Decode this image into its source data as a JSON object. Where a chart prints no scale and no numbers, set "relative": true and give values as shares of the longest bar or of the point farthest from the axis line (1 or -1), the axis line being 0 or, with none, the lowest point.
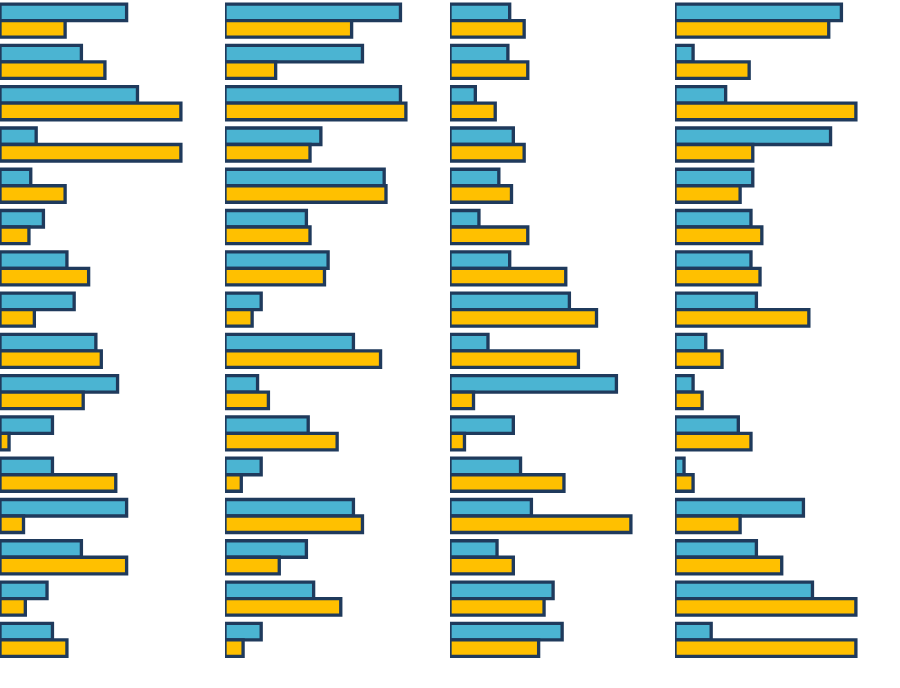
{
  "chart_data": [
    {
      "type": "bar",
      "orientation": "horizontal",
      "relative": true,
      "categories": [
        null,
        null,
        null,
        null,
        null,
        null,
        null,
        null,
        null,
        null,
        null,
        null,
        null,
        null,
        null,
        null
      ],
      "series": [
        {
          "color": "#4bb4d2",
          "values": [
            0.7,
            0.45,
            0.76,
            0.2,
            0.17,
            0.24,
            0.37,
            0.41,
            0.53,
            0.65,
            0.29,
            0.29,
            0.7,
            0.45,
            0.26,
            0.29
          ]
        },
        {
          "color": "#ffc000",
          "values": [
            0.36,
            0.58,
            1.0,
            1.0,
            0.36,
            0.16,
            0.49,
            0.19,
            0.56,
            0.46,
            0.05,
            0.64,
            0.13,
            0.7,
            0.14,
            0.37
          ]
        }
      ]
    },
    {
      "type": "bar",
      "orientation": "horizontal",
      "relative": true,
      "categories": [
        null,
        null,
        null,
        null,
        null,
        null,
        null,
        null,
        null,
        null,
        null,
        null,
        null,
        null,
        null,
        null
      ],
      "series": [
        {
          "color": "#4bb4d2",
          "values": [
            0.97,
            0.76,
            0.97,
            0.53,
            0.88,
            0.45,
            0.57,
            0.2,
            0.71,
            0.18,
            0.46,
            0.2,
            0.71,
            0.45,
            0.49,
            0.2
          ]
        },
        {
          "color": "#ffc000",
          "values": [
            0.7,
            0.28,
            1.0,
            0.47,
            0.89,
            0.47,
            0.55,
            0.15,
            0.86,
            0.24,
            0.62,
            0.09,
            0.76,
            0.3,
            0.64,
            0.1
          ]
        }
      ]
    },
    {
      "type": "bar",
      "orientation": "horizontal",
      "relative": true,
      "categories": [
        null,
        null,
        null,
        null,
        null,
        null,
        null,
        null,
        null,
        null,
        null,
        null,
        null,
        null,
        null,
        null
      ],
      "series": [
        {
          "color": "#4bb4d2",
          "values": [
            0.33,
            0.32,
            0.14,
            0.35,
            0.27,
            0.16,
            0.33,
            0.66,
            0.21,
            0.92,
            0.35,
            0.39,
            0.45,
            0.26,
            0.57,
            0.62
          ]
        },
        {
          "color": "#ffc000",
          "values": [
            0.41,
            0.43,
            0.25,
            0.41,
            0.34,
            0.43,
            0.64,
            0.81,
            0.71,
            0.13,
            0.08,
            0.63,
            1.0,
            0.35,
            0.52,
            0.49
          ]
        }
      ]
    },
    {
      "type": "bar",
      "orientation": "horizontal",
      "relative": true,
      "categories": [
        null,
        null,
        null,
        null,
        null,
        null,
        null,
        null,
        null,
        null,
        null,
        null,
        null,
        null,
        null,
        null
      ],
      "series": [
        {
          "color": "#4bb4d2",
          "values": [
            0.92,
            0.1,
            0.28,
            0.86,
            0.43,
            0.42,
            0.42,
            0.45,
            0.17,
            0.1,
            0.35,
            0.05,
            0.71,
            0.45,
            0.76,
            0.2
          ]
        },
        {
          "color": "#ffc000",
          "values": [
            0.85,
            0.41,
            1.0,
            0.43,
            0.36,
            0.48,
            0.47,
            0.74,
            0.26,
            0.15,
            0.42,
            0.1,
            0.36,
            0.59,
            1.0,
            1.0
          ]
        }
      ]
    }
  ]
}
